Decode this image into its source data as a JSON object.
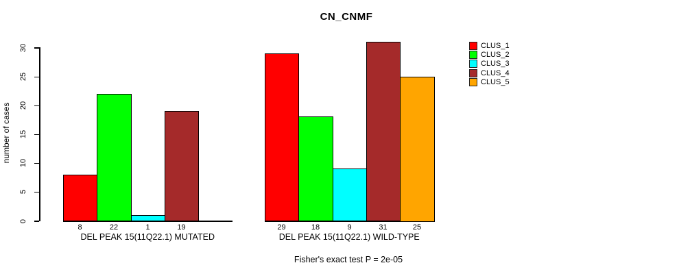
{
  "title": "CN_CNMF",
  "y_axis": {
    "label": "number of cases",
    "ticks": [
      0,
      5,
      10,
      15,
      20,
      25,
      30
    ]
  },
  "footer": "Fisher's exact test P = 2e-05",
  "legend": {
    "items": [
      {
        "label": "CLUS_1",
        "color": "#FF0000"
      },
      {
        "label": "CLUS_2",
        "color": "#00FF00"
      },
      {
        "label": "CLUS_3",
        "color": "#00FFFF"
      },
      {
        "label": "CLUS_4",
        "color": "#A52A2A"
      },
      {
        "label": "CLUS_5",
        "color": "#FFA500"
      }
    ]
  },
  "chart_data": {
    "type": "bar",
    "title": "CN_CNMF",
    "ylabel": "number of cases",
    "ylim": [
      0,
      31
    ],
    "yticks": [
      0,
      5,
      10,
      15,
      20,
      25,
      30
    ],
    "grid": false,
    "legend_position": "right",
    "series": [
      {
        "name": "CLUS_1",
        "color": "#FF0000"
      },
      {
        "name": "CLUS_2",
        "color": "#00FF00"
      },
      {
        "name": "CLUS_3",
        "color": "#00FFFF"
      },
      {
        "name": "CLUS_4",
        "color": "#A52A2A"
      },
      {
        "name": "CLUS_5",
        "color": "#FFA500"
      }
    ],
    "groups": [
      {
        "label": "DEL PEAK 15(11Q22.1) MUTATED",
        "values": [
          8,
          22,
          1,
          19,
          0
        ]
      },
      {
        "label": "DEL PEAK 15(11Q22.1) WILD-TYPE",
        "values": [
          29,
          18,
          9,
          31,
          25
        ]
      }
    ],
    "value_labels_shown": [
      "8",
      "22",
      "1",
      "19",
      "29",
      "18",
      "9",
      "31",
      "25"
    ],
    "annotation": "Fisher's exact test P = 2e-05"
  }
}
